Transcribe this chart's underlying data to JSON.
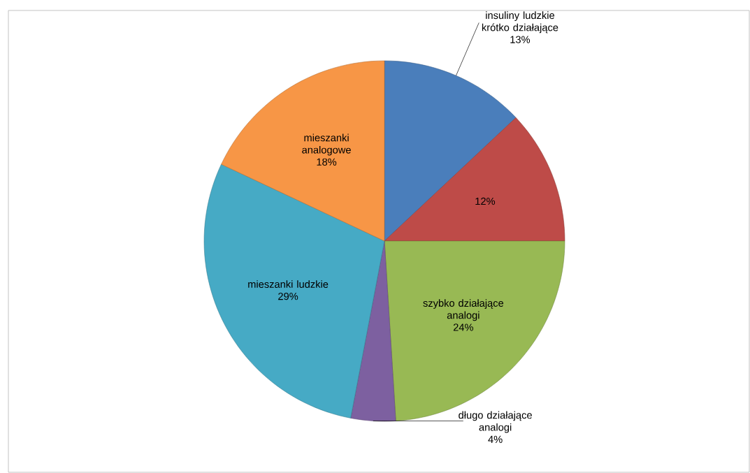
{
  "chart_data": {
    "type": "pie",
    "categories": [
      "insuliny ludzkie krótko działające",
      null,
      "szybko działające analogi",
      "długo działające analogi",
      "mieszanki ludzkie",
      "mieszanki analogowe"
    ],
    "values": [
      13,
      12,
      24,
      4,
      29,
      18
    ],
    "value_labels": [
      "13%",
      "12%",
      "24%",
      "4%",
      "29%",
      "18%"
    ],
    "colors": [
      "#4a7ebb",
      "#be4b48",
      "#98b954",
      "#7d60a0",
      "#46aac5",
      "#f79646"
    ]
  }
}
